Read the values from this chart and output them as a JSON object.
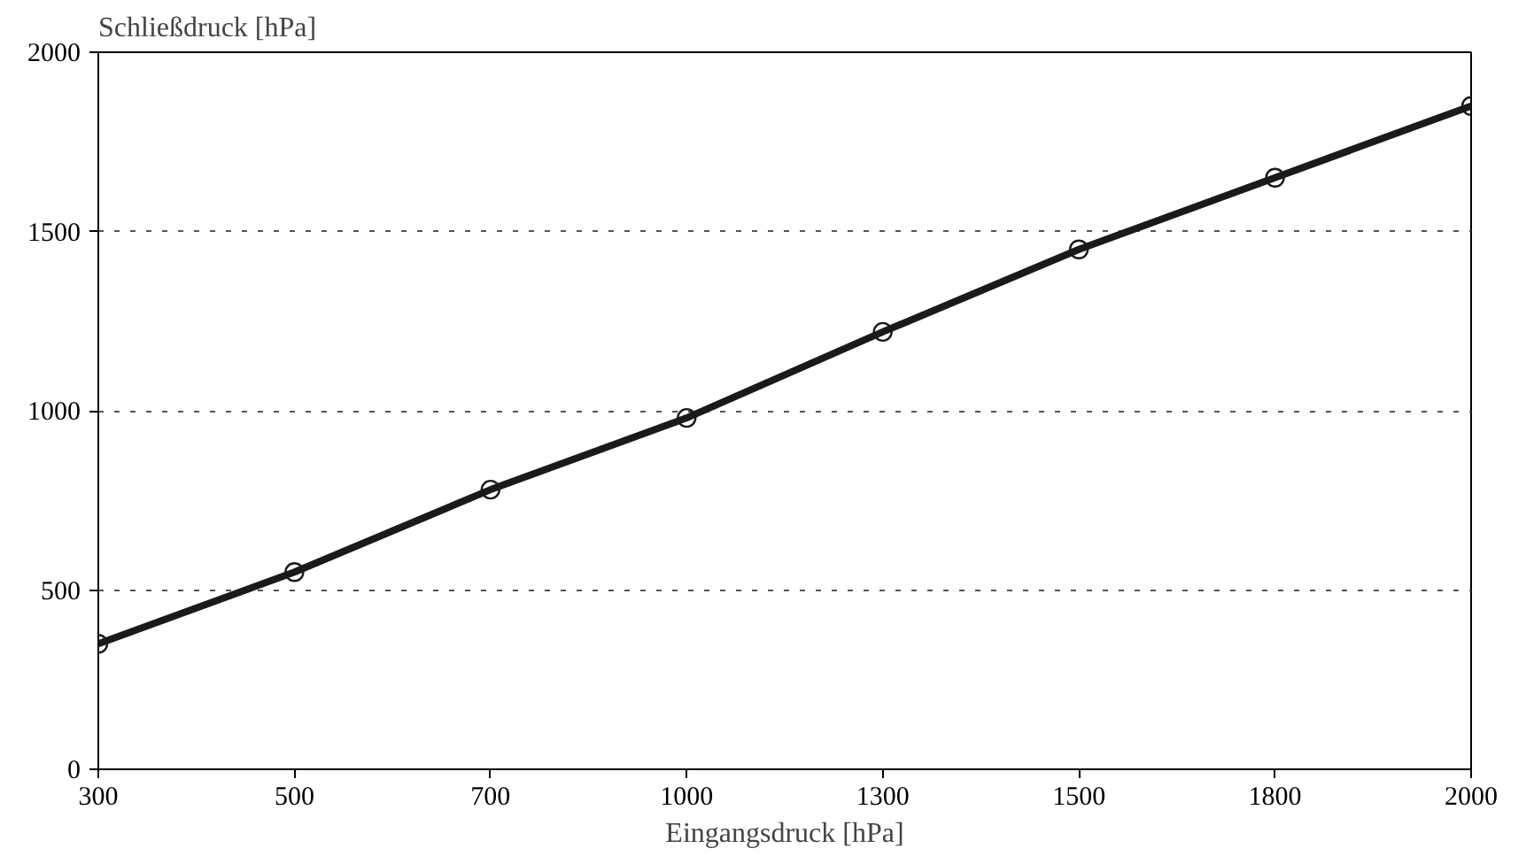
{
  "chart_data": {
    "type": "line",
    "xlabel": "Eingangsdruck [hPa]",
    "ylabel": "Schließdruck [hPa]",
    "categories": [
      "300",
      "500",
      "700",
      "1000",
      "1300",
      "1500",
      "1800",
      "2000"
    ],
    "series": [
      {
        "color": "#1a1a1a",
        "values": [
          350,
          550,
          780,
          980,
          1220,
          1450,
          1650,
          1850
        ]
      }
    ],
    "ylim": [
      0,
      2000
    ],
    "yticks": [
      0,
      500,
      1000,
      1500,
      2000
    ],
    "grid": "y",
    "marker": "circle",
    "line_style": "solid"
  }
}
